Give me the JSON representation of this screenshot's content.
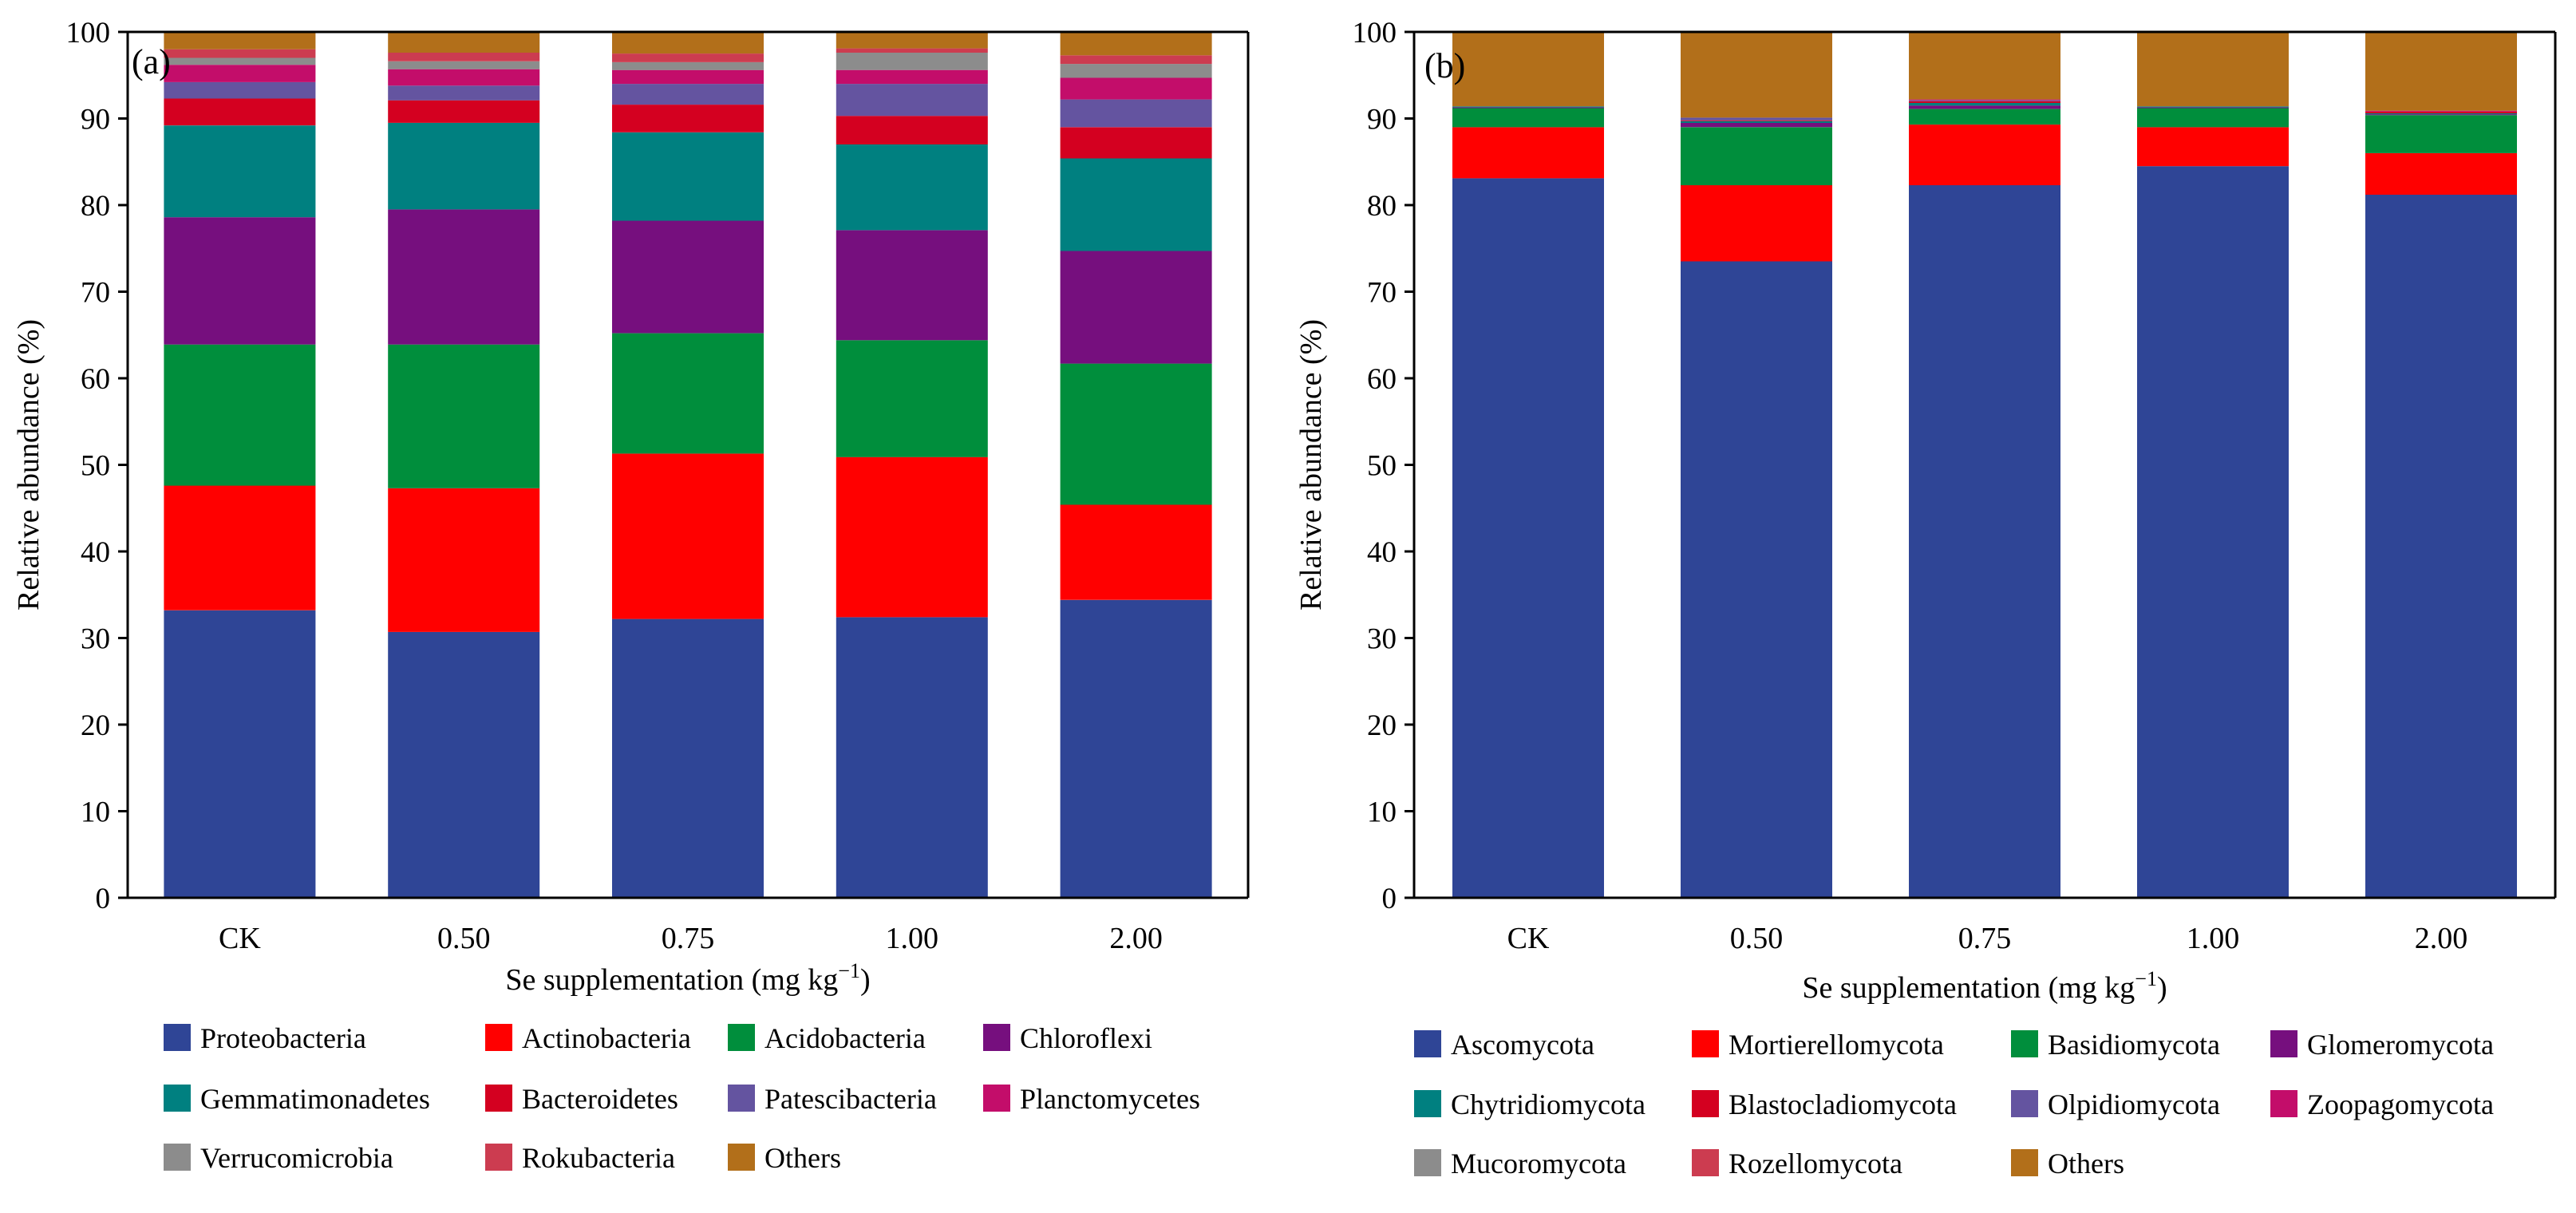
{
  "chart_data": [
    {
      "type": "bar",
      "stacked": true,
      "panel_label": "(a)",
      "xlabel_main": "Se supplementation (mg kg",
      "xlabel_sup": "−1",
      "xlabel_close": ")",
      "ylabel": "Relative abundance (%)",
      "ylim": [
        0,
        100
      ],
      "yticks": [
        "0",
        "10",
        "20",
        "30",
        "40",
        "50",
        "60",
        "70",
        "80",
        "90",
        "100"
      ],
      "categories": [
        "CK",
        "0.50",
        "0.75",
        "1.00",
        "2.00"
      ],
      "series": [
        {
          "name": "Proteobacteria",
          "color": "#2F4596",
          "values": [
            33.2,
            30.7,
            32.2,
            32.4,
            34.4
          ]
        },
        {
          "name": "Actinobacteria",
          "color": "#FF0000",
          "values": [
            14.4,
            16.6,
            19.1,
            18.5,
            11.0
          ]
        },
        {
          "name": "Acidobacteria",
          "color": "#008E3C",
          "values": [
            16.3,
            16.6,
            13.9,
            13.5,
            16.3
          ]
        },
        {
          "name": "Chloroflexi",
          "color": "#760F7E",
          "values": [
            14.7,
            15.6,
            13.0,
            12.7,
            13.0
          ]
        },
        {
          "name": "Gemmatimonadetes",
          "color": "#008080",
          "values": [
            10.6,
            10.0,
            10.2,
            9.9,
            10.7
          ]
        },
        {
          "name": "Bacteroidetes",
          "color": "#D40020",
          "values": [
            3.1,
            2.6,
            3.2,
            3.3,
            3.6
          ]
        },
        {
          "name": "Patescibacteria",
          "color": "#6454A0",
          "values": [
            1.9,
            1.7,
            2.4,
            3.7,
            3.2
          ]
        },
        {
          "name": "Planctomycetes",
          "color": "#C30D6A",
          "values": [
            2.0,
            1.9,
            1.6,
            1.6,
            2.5
          ]
        },
        {
          "name": "Verrucomicrobia",
          "color": "#8C8C8C",
          "values": [
            0.8,
            0.9,
            0.9,
            2.0,
            1.6
          ]
        },
        {
          "name": "Rokubacteria",
          "color": "#CC3C50",
          "values": [
            1.0,
            1.0,
            1.0,
            0.5,
            1.0
          ]
        },
        {
          "name": "Others",
          "color": "#B26F1A",
          "values": [
            2.0,
            2.4,
            2.5,
            1.9,
            2.7
          ]
        }
      ]
    },
    {
      "type": "bar",
      "stacked": true,
      "panel_label": "(b)",
      "xlabel_main": "Se supplementation (mg kg",
      "xlabel_sup": "−1",
      "xlabel_close": ")",
      "ylabel": "Relative abundance (%)",
      "ylim": [
        0,
        100
      ],
      "yticks": [
        "0",
        "10",
        "20",
        "30",
        "40",
        "50",
        "60",
        "70",
        "80",
        "90",
        "100"
      ],
      "categories": [
        "CK",
        "0.50",
        "0.75",
        "1.00",
        "2.00"
      ],
      "series": [
        {
          "name": "Ascomycota",
          "color": "#2F4596",
          "values": [
            83.1,
            73.5,
            82.3,
            84.5,
            81.2
          ]
        },
        {
          "name": "Mortierellomycota",
          "color": "#FF0000",
          "values": [
            5.9,
            8.8,
            7.0,
            4.5,
            4.8
          ]
        },
        {
          "name": "Basidiomycota",
          "color": "#008E3C",
          "values": [
            2.2,
            6.7,
            1.8,
            2.2,
            4.4
          ]
        },
        {
          "name": "Glomeromycota",
          "color": "#760F7E",
          "values": [
            0.1,
            0.5,
            0.4,
            0.1,
            0.1
          ]
        },
        {
          "name": "Chytridiomycota",
          "color": "#008080",
          "values": [
            0.1,
            0.2,
            0.3,
            0.1,
            0.1
          ]
        },
        {
          "name": "Blastocladiomycota",
          "color": "#D40020",
          "values": [
            0.0,
            0.1,
            0.2,
            0.0,
            0.2
          ]
        },
        {
          "name": "Olpidiomycota",
          "color": "#6454A0",
          "values": [
            0.0,
            0.3,
            0.1,
            0.0,
            0.0
          ]
        },
        {
          "name": "Zoopagomycota",
          "color": "#C30D6A",
          "values": [
            0.0,
            0.0,
            0.1,
            0.0,
            0.1
          ]
        },
        {
          "name": "Mucoromycota",
          "color": "#8C8C8C",
          "values": [
            0.0,
            0.0,
            0.0,
            0.0,
            0.0
          ]
        },
        {
          "name": "Rozellomycota",
          "color": "#CC3C50",
          "values": [
            0.0,
            0.0,
            0.0,
            0.0,
            0.0
          ]
        },
        {
          "name": "Others",
          "color": "#B26F1A",
          "values": [
            8.6,
            9.9,
            7.8,
            8.6,
            9.1
          ]
        }
      ]
    }
  ]
}
